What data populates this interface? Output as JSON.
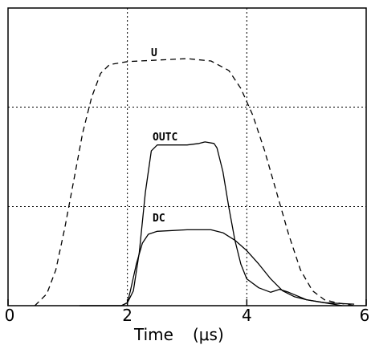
{
  "chart_data": {
    "type": "line",
    "xlabel": "Time (μs)",
    "ylabel": "",
    "xlim": [
      0,
      6
    ],
    "ylim": [
      0,
      1
    ],
    "x_ticks": [
      0,
      2,
      4,
      6
    ],
    "x_tick_labels": [
      "0",
      "2",
      "4",
      "6"
    ],
    "gridlines": {
      "x": [
        2,
        4
      ],
      "y": [
        0.333,
        0.667
      ]
    },
    "series": [
      {
        "name": "U",
        "style": "dashed",
        "points": [
          [
            0.45,
            0.0
          ],
          [
            0.65,
            0.04
          ],
          [
            0.8,
            0.12
          ],
          [
            0.95,
            0.26
          ],
          [
            1.1,
            0.42
          ],
          [
            1.25,
            0.58
          ],
          [
            1.4,
            0.7
          ],
          [
            1.55,
            0.78
          ],
          [
            1.7,
            0.81
          ],
          [
            2.0,
            0.82
          ],
          [
            2.5,
            0.825
          ],
          [
            3.0,
            0.83
          ],
          [
            3.4,
            0.822
          ],
          [
            3.7,
            0.79
          ],
          [
            3.9,
            0.73
          ],
          [
            4.1,
            0.64
          ],
          [
            4.3,
            0.52
          ],
          [
            4.5,
            0.38
          ],
          [
            4.7,
            0.24
          ],
          [
            4.9,
            0.12
          ],
          [
            5.1,
            0.05
          ],
          [
            5.3,
            0.02
          ],
          [
            5.5,
            0.01
          ],
          [
            5.8,
            0.0
          ]
        ]
      },
      {
        "name": "OUTC",
        "style": "solid",
        "points": [
          [
            1.2,
            0.0
          ],
          [
            1.9,
            0.0
          ],
          [
            2.0,
            0.01
          ],
          [
            2.1,
            0.05
          ],
          [
            2.2,
            0.18
          ],
          [
            2.3,
            0.38
          ],
          [
            2.4,
            0.52
          ],
          [
            2.5,
            0.54
          ],
          [
            3.0,
            0.54
          ],
          [
            3.2,
            0.545
          ],
          [
            3.3,
            0.55
          ],
          [
            3.45,
            0.545
          ],
          [
            3.5,
            0.53
          ],
          [
            3.6,
            0.45
          ],
          [
            3.7,
            0.33
          ],
          [
            3.8,
            0.22
          ],
          [
            3.9,
            0.14
          ],
          [
            4.0,
            0.09
          ],
          [
            4.2,
            0.06
          ],
          [
            4.4,
            0.045
          ],
          [
            4.55,
            0.055
          ],
          [
            4.7,
            0.045
          ],
          [
            5.0,
            0.02
          ],
          [
            5.3,
            0.01
          ],
          [
            5.6,
            0.0
          ]
        ]
      },
      {
        "name": "DC",
        "style": "solid",
        "points": [
          [
            1.2,
            0.0
          ],
          [
            1.9,
            0.0
          ],
          [
            2.0,
            0.01
          ],
          [
            2.05,
            0.05
          ],
          [
            2.15,
            0.14
          ],
          [
            2.25,
            0.21
          ],
          [
            2.35,
            0.24
          ],
          [
            2.5,
            0.25
          ],
          [
            3.0,
            0.255
          ],
          [
            3.4,
            0.255
          ],
          [
            3.6,
            0.245
          ],
          [
            3.8,
            0.22
          ],
          [
            4.0,
            0.185
          ],
          [
            4.2,
            0.14
          ],
          [
            4.4,
            0.09
          ],
          [
            4.6,
            0.05
          ],
          [
            4.8,
            0.03
          ],
          [
            5.0,
            0.02
          ],
          [
            5.3,
            0.01
          ],
          [
            5.8,
            0.005
          ]
        ]
      }
    ]
  },
  "labels": {
    "x_axis_title": "Time",
    "x_axis_unit": "(μs)",
    "series_u": "U",
    "series_outc": "OUTC",
    "series_dc": "DC"
  }
}
